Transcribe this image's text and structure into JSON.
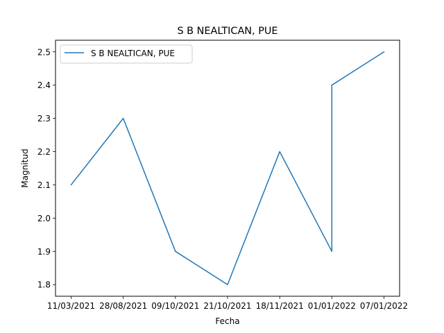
{
  "chart_data": {
    "type": "line",
    "title": "S B NEALTICAN, PUE",
    "xlabel": "Fecha",
    "ylabel": "Magnitud",
    "categories": [
      "11/03/2021",
      "28/08/2021",
      "09/10/2021",
      "21/10/2021",
      "18/11/2021",
      "01/01/2022",
      "07/01/2022"
    ],
    "series": [
      {
        "name": "S B NEALTICAN, PUE",
        "color": "#1f77b4",
        "points": [
          {
            "x": "11/03/2021",
            "y": 2.1
          },
          {
            "x": "28/08/2021",
            "y": 2.3
          },
          {
            "x": "09/10/2021",
            "y": 1.9
          },
          {
            "x": "21/10/2021",
            "y": 1.8
          },
          {
            "x": "18/11/2021",
            "y": 2.2
          },
          {
            "x": "01/01/2022",
            "y": 1.9
          },
          {
            "x": "01/01/2022",
            "y": 2.4
          },
          {
            "x": "07/01/2022",
            "y": 2.5
          }
        ]
      }
    ],
    "y_ticks": [
      1.8,
      1.9,
      2.0,
      2.1,
      2.2,
      2.3,
      2.4,
      2.5
    ],
    "y_tick_labels": [
      "1.8",
      "1.9",
      "2.0",
      "2.1",
      "2.2",
      "2.3",
      "2.4",
      "2.5"
    ],
    "ylim": [
      1.765,
      2.535
    ],
    "grid": false,
    "legend_position": "top-left"
  }
}
